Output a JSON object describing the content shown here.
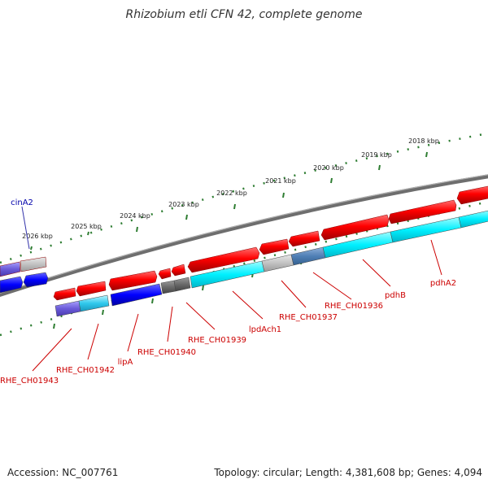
{
  "title": "Rhizobium etli CFN 42, complete genome",
  "footer": {
    "accession": "Accession: NC_007761",
    "meta": "Topology: circular; Length: 4,381,608 bp; Genes: 4,094"
  },
  "colors": {
    "background": "#ffffff",
    "backbone": "#808080",
    "tick": "#2e7d32",
    "forward_gene": "#ff0000",
    "reverse_gene": "#00ffff",
    "label_red": "#cc0000",
    "label_blue": "#0000aa"
  },
  "ruler": {
    "ticks": [
      "2026 kbp",
      "2025 kbp",
      "2024 kbp",
      "2023 kbp",
      "2022 kbp",
      "2021 kbp",
      "2020 kbp",
      "2019 kbp",
      "2018 kbp"
    ]
  },
  "genes": {
    "labels": [
      "cinA2",
      "RHE_CH01943",
      "RHE_CH01942",
      "lipA",
      "RHE_CH01940",
      "RHE_CH01939",
      "lpdAch1",
      "RHE_CH01937",
      "RHE_CH01936",
      "pdhB",
      "pdhA2"
    ]
  }
}
